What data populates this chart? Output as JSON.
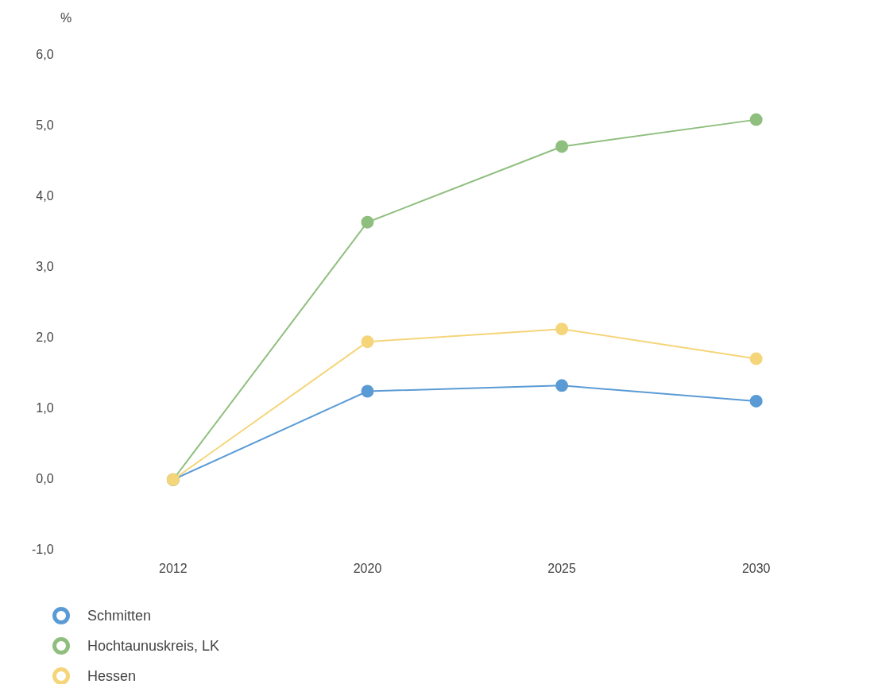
{
  "chart_data": {
    "type": "line",
    "ylabel": "%",
    "categories": [
      "2012",
      "2020",
      "2025",
      "2030"
    ],
    "series": [
      {
        "name": "Schmitten",
        "color": "#5b9bd5",
        "values": [
          0,
          1.25,
          1.33,
          1.11
        ]
      },
      {
        "name": "Hochtaunuskreis, LK",
        "color": "#8fbf7f",
        "values": [
          0,
          3.64,
          4.71,
          5.09
        ]
      },
      {
        "name": "Hessen",
        "color": "#f5d57a",
        "values": [
          0,
          1.95,
          2.13,
          1.71
        ]
      }
    ],
    "ylim": [
      -1,
      6
    ],
    "yticks": [
      {
        "value": -1,
        "label": "-1,0"
      },
      {
        "value": 0,
        "label": "0,0"
      },
      {
        "value": 1,
        "label": "1,0"
      },
      {
        "value": 2,
        "label": "2,0"
      },
      {
        "value": 3,
        "label": "3,0"
      },
      {
        "value": 4,
        "label": "4,0"
      },
      {
        "value": 5,
        "label": "5,0"
      },
      {
        "value": 6,
        "label": "6,0"
      }
    ],
    "grid": false,
    "legend": "bottom left",
    "marker": "circle",
    "line_style": "solid"
  }
}
